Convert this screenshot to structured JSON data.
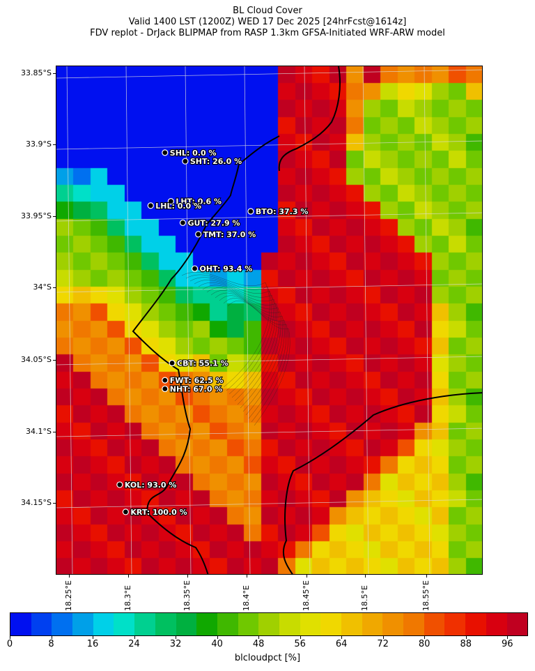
{
  "title": {
    "line1": "BL Cloud Cover",
    "line2": "Valid 1400 LST (1200Z) WED 17 Dec 2025 [24hrFcst@1614z]",
    "line3": "FDV replot - DrJack BLIPMAP from RASP 1.3km GFSA-Initiated WRF-ARW model"
  },
  "lat_ticks": [
    "33.85°S",
    "33.9°S",
    "33.95°S",
    "34°S",
    "34.05°S",
    "34.1°S",
    "34.15°S"
  ],
  "lon_ticks": [
    "18.25°E",
    "18.3°E",
    "18.35°E",
    "18.4°E",
    "18.45°E",
    "18.5°E",
    "18.55°E"
  ],
  "stations": [
    {
      "label": "SHL: 0.0 %",
      "lon": 18.33,
      "lat": -33.905
    },
    {
      "label": "SHT: 26.0 %",
      "lon": 18.347,
      "lat": -33.911
    },
    {
      "label": "LHT: 0.6 %",
      "lon": 18.335,
      "lat": -33.939
    },
    {
      "label": "LHL: 0.0 %",
      "lon": 18.318,
      "lat": -33.942
    },
    {
      "label": "BTO: 37.3 %",
      "lon": 18.402,
      "lat": -33.946
    },
    {
      "label": "GUT: 27.9 %",
      "lon": 18.345,
      "lat": -33.954
    },
    {
      "label": "TMT: 37.0 %",
      "lon": 18.358,
      "lat": -33.962
    },
    {
      "label": "OHT: 93.4 %",
      "lon": 18.355,
      "lat": -33.986
    },
    {
      "label": "CBT: 55.1 %",
      "lon": 18.336,
      "lat": -34.052
    },
    {
      "label": "FWT: 62.5 %",
      "lon": 18.33,
      "lat": -34.064
    },
    {
      "label": "NHT: 67.0 %",
      "lon": 18.33,
      "lat": -34.07
    },
    {
      "label": "KOL: 93.0 %",
      "lon": 18.292,
      "lat": -34.137
    },
    {
      "label": "KRT: 100.0 %",
      "lon": 18.297,
      "lat": -34.156
    }
  ],
  "colorbar": {
    "label": "blcloudpct [%]",
    "range": [
      0,
      100
    ],
    "step": 4,
    "tick_values": [
      "0",
      "8",
      "16",
      "24",
      "32",
      "40",
      "48",
      "56",
      "64",
      "72",
      "80",
      "88",
      "96"
    ],
    "colors": [
      "#0010f0",
      "#0040f0",
      "#0070f0",
      "#00a0e8",
      "#00d0e8",
      "#00e0c8",
      "#00d090",
      "#00c060",
      "#00b040",
      "#10a800",
      "#40b800",
      "#70c800",
      "#a0d000",
      "#c8dc00",
      "#e0e000",
      "#f0d800",
      "#f0c000",
      "#f0a800",
      "#f09000",
      "#f07800",
      "#f05000",
      "#f03000",
      "#e81000",
      "#d80010",
      "#c00020"
    ]
  },
  "map": {
    "grid_rows": 30,
    "grid_cols": 25,
    "cloud_grid": [
      "0000000000000999989888888",
      "0000000000000999988677667",
      "0000000000000999986666665",
      "0000000000000999986666665",
      "0000000000000999976666665",
      "0000000000000999966666665",
      "1110000000000999966666665",
      "2221000000000999996666665",
      "4332100000000999999666665",
      "5543210000000999999966665",
      "6654321000000999999996665",
      "6665432100009999999999665",
      "6666543211119999999999665",
      "7777654332229999999999665",
      "8887765443339999999999765",
      "8888776554449999999999765",
      "8888877665559999999999765",
      "9888887776669999999999765",
      "9988888887779999999999765",
      "9998888888889999999999765",
      "9999888888889999999999765",
      "9999988888889999999998765",
      "9999998888889999999987765",
      "9999999888889999999877765",
      "9999999988889999998777765",
      "9999999998889999987777765",
      "9999999999889999877777765",
      "9999999999989998777777765",
      "9999999999999987777777765",
      "9999999999999877777777765"
    ],
    "bin_values": {
      "0": 2,
      "1": 14,
      "2": 22,
      "3": 30,
      "4": 38,
      "5": 46,
      "6": 48,
      "7": 62,
      "8": 76,
      "9": 94
    }
  }
}
